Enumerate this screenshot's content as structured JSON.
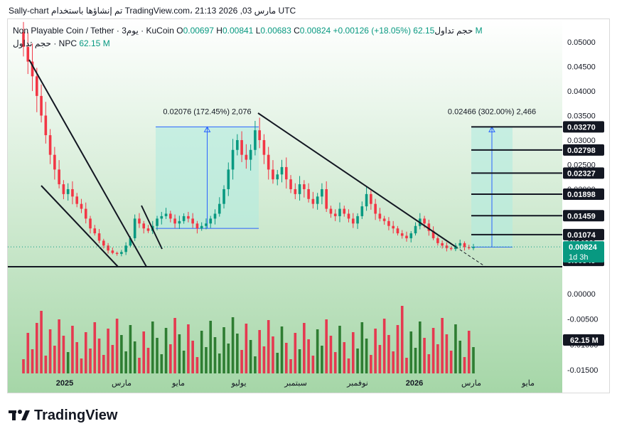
{
  "header": {
    "text": "Sally-chart تم إنشاؤها باستخدام TradingView.com، 21:13 2026 ,03 مارس UTC"
  },
  "legend": {
    "symbol": "Non Playable Coin / Tether · 3يوم · KuCoin",
    "o_label": "O",
    "o": "0.00697",
    "h_label": "H",
    "h": "0.00841",
    "l_label": "L",
    "l": "0.00683",
    "c_label": "C",
    "c": "0.00824",
    "change": "+0.00126 (+18.05%)",
    "vol_label": "حجم تداول",
    "vol": "62.15 M",
    "vol2_label": "حجم تداول · NPC",
    "vol2": "62.15 M"
  },
  "colors": {
    "up": "#089981",
    "down": "#f23645",
    "up_vol": "#2e7d32",
    "down_vol": "#e53950",
    "measure_fill": "#b2ebe0",
    "measure_line": "#2962ff",
    "pane_bg": "#a5d6a7"
  },
  "chart_data": {
    "type": "candlestick",
    "title": "Non Playable Coin / Tether · 3D · KuCoin",
    "price_axis": {
      "ticks": [
        "0.05000",
        "0.04500",
        "0.04000",
        "0.03500",
        "0.03000",
        "0.02500",
        "0.02000",
        "0.01500",
        "0.01000"
      ],
      "ylim": [
        0.004,
        0.054
      ]
    },
    "volume_axis": {
      "ticks": [
        "0.00000",
        "-0.00500",
        "-0.01000",
        "-0.01500"
      ]
    },
    "time_axis": {
      "labels": [
        "2025",
        "مارس",
        "مايو",
        "يوليو",
        "سبتمبر",
        "نوفمبر",
        "2026",
        "مارس",
        "مايو"
      ]
    },
    "levels": [
      {
        "price": 0.0327,
        "label": "0.03270"
      },
      {
        "price": 0.02798,
        "label": "0.02798"
      },
      {
        "price": 0.02327,
        "label": "0.02327"
      },
      {
        "price": 0.01898,
        "label": "0.01898"
      },
      {
        "price": 0.01459,
        "label": "0.01459"
      },
      {
        "price": 0.01074,
        "label": "0.01074"
      },
      {
        "price": 0.00549,
        "label": "0.00549"
      }
    ],
    "current_price": {
      "value": 0.00824,
      "label": "0.00824",
      "countdown": "1d 3h"
    },
    "volume_current": "62.15 M",
    "measures": [
      {
        "label": "0.02076 (172.45%) 2,076",
        "from": 0.012,
        "to": 0.0327
      },
      {
        "label": "0.02466 (302.00%) 2,466",
        "from": 0.0082,
        "to": 0.0327
      }
    ],
    "close_path": [
      0.049,
      0.046,
      0.043,
      0.039,
      0.035,
      0.031,
      0.027,
      0.024,
      0.021,
      0.019,
      0.02,
      0.0185,
      0.017,
      0.016,
      0.014,
      0.012,
      0.011,
      0.0095,
      0.0085,
      0.0075,
      0.007,
      0.0068,
      0.0072,
      0.0085,
      0.01,
      0.014,
      0.013,
      0.012,
      0.0115,
      0.0125,
      0.014,
      0.0145,
      0.015,
      0.014,
      0.013,
      0.0135,
      0.0145,
      0.014,
      0.013,
      0.012,
      0.0125,
      0.013,
      0.014,
      0.015,
      0.017,
      0.02,
      0.024,
      0.028,
      0.03,
      0.027,
      0.026,
      0.028,
      0.032,
      0.03,
      0.027,
      0.024,
      0.022,
      0.023,
      0.0245,
      0.022,
      0.02,
      0.019,
      0.021,
      0.02,
      0.018,
      0.017,
      0.0185,
      0.02,
      0.016,
      0.015,
      0.0145,
      0.016,
      0.015,
      0.014,
      0.013,
      0.0145,
      0.0165,
      0.019,
      0.017,
      0.015,
      0.014,
      0.0135,
      0.0125,
      0.012,
      0.011,
      0.0105,
      0.01,
      0.011,
      0.0125,
      0.014,
      0.013,
      0.0115,
      0.01,
      0.009,
      0.0085,
      0.008,
      0.0078,
      0.0085,
      0.009,
      0.0082,
      0.008,
      0.0082
    ],
    "lows_marked": [
      {
        "low": 0.0054
      }
    ]
  }
}
